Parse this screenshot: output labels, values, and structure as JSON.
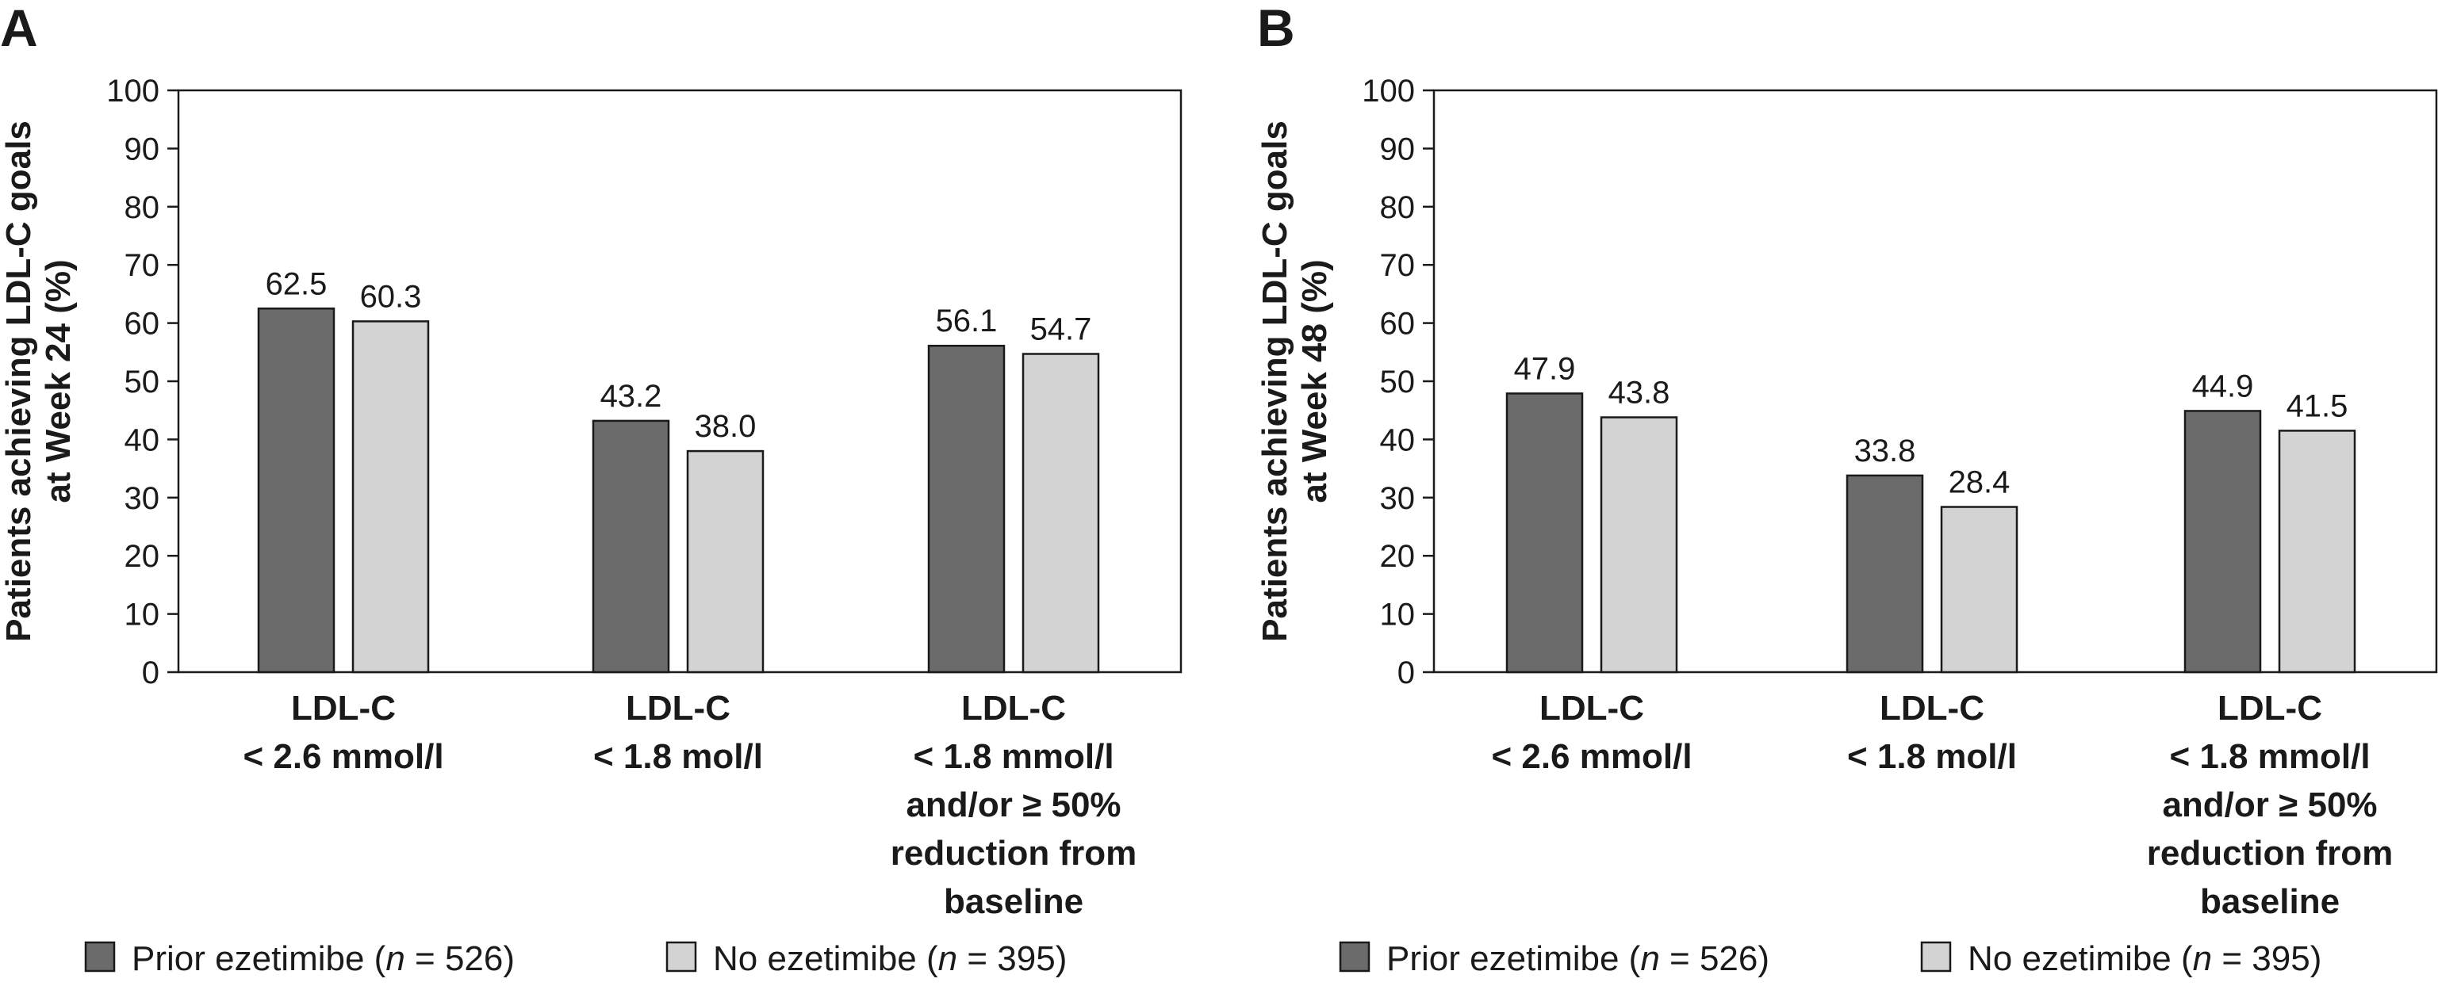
{
  "chart_data": [
    {
      "panel_label": "A",
      "type": "bar",
      "ylabel": [
        "Patients achieving LDL-C goals",
        "at Week 24 (%)"
      ],
      "ylim": [
        0,
        100
      ],
      "yticks": [
        0,
        10,
        20,
        30,
        40,
        50,
        60,
        70,
        80,
        90,
        100
      ],
      "categories": [
        [
          "LDL-C",
          "< 2.6 mmol/l"
        ],
        [
          "LDL-C",
          "< 1.8 mol/l"
        ],
        [
          "LDL-C",
          "< 1.8 mmol/l",
          "and/or ≥ 50%",
          "reduction from",
          "baseline"
        ]
      ],
      "series": [
        {
          "name": "Prior ezetimibe",
          "n": "526",
          "color": "#6b6b6b",
          "values": [
            62.5,
            43.2,
            56.1
          ]
        },
        {
          "name": "No ezetimibe",
          "n": "395",
          "color": "#d3d3d3",
          "values": [
            60.3,
            38.0,
            54.7
          ]
        }
      ],
      "grid": false,
      "legend": "bottom",
      "legend_items": [
        {
          "prefix": "Prior ezetimibe (",
          "n_symbol": "n",
          "suffix": " = 526)"
        },
        {
          "prefix": "No ezetimibe (",
          "n_symbol": "n",
          "suffix": " = 395)"
        }
      ]
    },
    {
      "panel_label": "B",
      "type": "bar",
      "ylabel": [
        "Patients achieving LDL-C goals",
        "at Week 48 (%)"
      ],
      "ylim": [
        0,
        100
      ],
      "yticks": [
        0,
        10,
        20,
        30,
        40,
        50,
        60,
        70,
        80,
        90,
        100
      ],
      "categories": [
        [
          "LDL-C",
          "< 2.6 mmol/l"
        ],
        [
          "LDL-C",
          "< 1.8 mol/l"
        ],
        [
          "LDL-C",
          "< 1.8 mmol/l",
          "and/or ≥ 50%",
          "reduction from",
          "baseline"
        ]
      ],
      "series": [
        {
          "name": "Prior ezetimibe",
          "n": "526",
          "color": "#6b6b6b",
          "values": [
            47.9,
            33.8,
            44.9
          ]
        },
        {
          "name": "No ezetimibe",
          "n": "395",
          "color": "#d3d3d3",
          "values": [
            43.8,
            28.4,
            41.5
          ]
        }
      ],
      "grid": false,
      "legend": "bottom",
      "legend_items": [
        {
          "prefix": "Prior ezetimibe (",
          "n_symbol": "n",
          "suffix": " = 526)"
        },
        {
          "prefix": "No ezetimibe (",
          "n_symbol": "n",
          "suffix": " = 395)"
        }
      ]
    }
  ]
}
